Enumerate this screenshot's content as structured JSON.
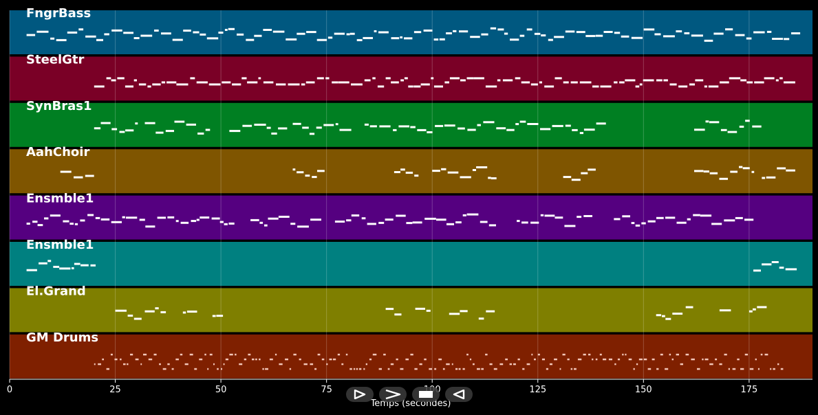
{
  "chart_data": {
    "type": "piano-roll",
    "xlabel": "Temps (secondes)",
    "xlim": [
      0,
      190
    ],
    "xticks": [
      0,
      25,
      50,
      75,
      100,
      125,
      150,
      175
    ],
    "grid": true,
    "tracks": [
      {
        "name": "FngrBass",
        "color": "#005880"
      },
      {
        "name": "SteelGtr",
        "color": "#7a0026"
      },
      {
        "name": "SynBras1",
        "color": "#007f22"
      },
      {
        "name": "AahChoir",
        "color": "#7f5500"
      },
      {
        "name": "Ensmble1",
        "color": "#550080"
      },
      {
        "name": "Ensmble1",
        "color": "#008080"
      },
      {
        "name": "El.Grand",
        "color": "#7f7f00"
      },
      {
        "name": "GM Drums",
        "color": "#7f2000"
      }
    ]
  },
  "transport": {
    "play_icon": "play-icon",
    "forward_icon": "forward-icon",
    "stop_icon": "stop-icon",
    "rewind_icon": "rewind-icon"
  }
}
